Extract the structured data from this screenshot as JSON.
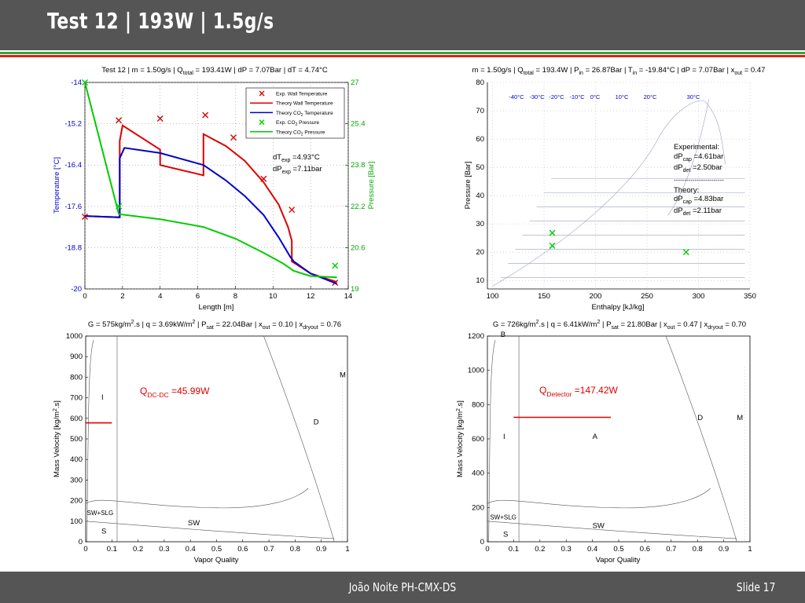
{
  "slide": {
    "title": "Test 12 |  193W | 1.5g/s",
    "footer": "João Noite PH-CMX-DS",
    "slide_number": "Slide 17",
    "colors": {
      "header": "#555555",
      "accent_green": "#35a435",
      "accent_red": "#d92020"
    }
  },
  "chart_data": [
    {
      "id": "temperature_pressure_profile",
      "type": "line",
      "title": "Test 12 | m = 1.50g/s | Qtotal = 193.41W | dP = 7.07Bar | dT = 4.74°C",
      "xlabel": "Length [m]",
      "ylabel": "Temperature [°C]",
      "ylabel_right": "Pressure [Bar]",
      "xlim": [
        0,
        14
      ],
      "ylim": [
        -20,
        -14
      ],
      "ylim_right": [
        19,
        27
      ],
      "x_ticks": [
        "0",
        "2",
        "4",
        "6",
        "8",
        "10",
        "12",
        "14"
      ],
      "y_ticks": [
        "-14",
        "-15.2",
        "-16.4",
        "-17.6",
        "-18.8",
        "-20"
      ],
      "y_ticks_right": [
        "27",
        "25.4",
        "23.8",
        "22.2",
        "20.6",
        "19"
      ],
      "annotation_lines": [
        "dTexp =4.93°C",
        "dPexp =7.11bar"
      ],
      "legend_position": "top-right",
      "legend": [
        {
          "label": "Exp. Wall Temperature",
          "color": "#dd0000",
          "marker": "x"
        },
        {
          "label": "Theory  Wall Temperature",
          "color": "#dd0000",
          "marker": "line"
        },
        {
          "label": "Theory  CO2 Temperature",
          "color": "#0000cc",
          "marker": "line"
        },
        {
          "label": "Exp. CO2 Pressure",
          "color": "#00cc00",
          "marker": "x"
        },
        {
          "label": "Theory  CO2 Pressure",
          "color": "#00cc00",
          "marker": "line"
        }
      ],
      "series": [
        {
          "name": "Exp. Wall Temperature",
          "kind": "scatter",
          "axis": "left",
          "color": "#dd0000",
          "x": [
            0,
            1.8,
            4.0,
            6.4,
            7.9,
            9.5,
            11.0,
            13.3
          ],
          "y": [
            -17.9,
            -15.1,
            -15.05,
            -14.95,
            -15.6,
            -16.8,
            -17.7,
            -19.82
          ]
        },
        {
          "name": "Theory  Wall Temperature",
          "kind": "line",
          "axis": "left",
          "color": "#dd0000",
          "x": [
            0,
            1.85,
            1.85,
            2.0,
            4.0,
            4.0,
            6.3,
            6.3,
            7.5,
            8.5,
            9.5,
            10.3,
            10.8,
            11.0,
            11.0,
            12.0,
            13.4
          ],
          "y": [
            -17.88,
            -17.92,
            -15.7,
            -15.25,
            -15.95,
            -16.4,
            -16.7,
            -15.5,
            -15.85,
            -16.28,
            -16.9,
            -17.55,
            -18.2,
            -18.6,
            -19.2,
            -19.55,
            -19.8
          ]
        },
        {
          "name": "Theory  CO2 Temperature",
          "kind": "line",
          "axis": "left",
          "color": "#0000cc",
          "x": [
            0,
            1.85,
            1.85,
            2.1,
            4.0,
            6.3,
            7.5,
            8.5,
            9.5,
            10.3,
            10.9,
            11.1,
            12.0,
            13.4
          ],
          "y": [
            -17.88,
            -17.92,
            -16.2,
            -15.9,
            -16.05,
            -16.4,
            -16.85,
            -17.3,
            -17.85,
            -18.5,
            -19.05,
            -19.2,
            -19.55,
            -19.85
          ]
        },
        {
          "name": "Exp. CO2 Pressure",
          "kind": "scatter",
          "axis": "right",
          "color": "#00cc00",
          "x": [
            0,
            1.8,
            13.3
          ],
          "y": [
            27.0,
            22.2,
            19.9
          ]
        },
        {
          "name": "Theory  CO2 Pressure",
          "kind": "line",
          "axis": "right",
          "color": "#00cc00",
          "x": [
            0,
            1.8,
            4.0,
            6.3,
            8.0,
            9.5,
            10.5,
            11.1,
            12.0,
            13.4
          ],
          "y": [
            27.0,
            21.9,
            21.7,
            21.4,
            20.95,
            20.4,
            20.0,
            19.7,
            19.5,
            19.45
          ]
        }
      ]
    },
    {
      "id": "ph_diagram",
      "type": "scatter",
      "title": "m = 1.50g/s | Qtotal = 193.4W | Pin = 26.87Bar | Tin = -19.84°C | dP = 7.07Bar | xout = 0.47",
      "xlabel": "Enthalpy [kJ/kg]",
      "ylabel": "Pressure [Bar]",
      "xlim": [
        95,
        350
      ],
      "ylim": [
        7,
        80
      ],
      "x_ticks": [
        "100",
        "150",
        "200",
        "250",
        "300",
        "350"
      ],
      "y_ticks": [
        "80",
        "70",
        "60",
        "50",
        "40",
        "30",
        "20",
        "10"
      ],
      "isotherm_labels": [
        "-40°C",
        "-30°C",
        "-20°C",
        "-10°C",
        "0°C",
        "10°C",
        "20°C",
        "30°C"
      ],
      "annotation_lines": [
        "Experimental:",
        "dPcap =4.61bar",
        "dPdet =2.50bar",
        "------------------------",
        "Theory:",
        "dPcap =4.83bar",
        "dPdet =2.11bar"
      ],
      "series": [
        {
          "kind": "scatter",
          "color": "#00cc00",
          "x": [
            158,
            158,
            288
          ],
          "y": [
            26.8,
            22.3,
            20.0
          ]
        }
      ]
    },
    {
      "id": "flow_pattern_map_capillary",
      "type": "line",
      "title": "G = 575kg/m2.s | q = 3.69kW/m2 | Psat = 22.04Bar | xout = 0.10 | xdryout = 0.76",
      "xlabel": "Vapor Quality",
      "ylabel": "Mass Velocity [kg/m2.s]",
      "xlim": [
        0,
        1
      ],
      "ylim": [
        0,
        1000
      ],
      "x_ticks": [
        "0",
        "0.1",
        "0.2",
        "0.3",
        "0.4",
        "0.5",
        "0.6",
        "0.7",
        "0.8",
        "0.9",
        "1"
      ],
      "y_ticks": [
        "1000",
        "900",
        "800",
        "700",
        "600",
        "500",
        "400",
        "300",
        "200",
        "100",
        "0"
      ],
      "heat_label": "QDC-DC =45.99W",
      "region_labels": [
        "I",
        "D",
        "M",
        "SW+SLG",
        "SW",
        "S"
      ],
      "series": [
        {
          "kind": "line",
          "color": "#dd0000",
          "x": [
            0,
            0.1
          ],
          "y": [
            578,
            578
          ]
        }
      ]
    },
    {
      "id": "flow_pattern_map_detector",
      "type": "line",
      "title": "G = 726kg/m2.s | q = 6.41kW/m2 | Psat = 21.80Bar | xout = 0.47 | xdryout = 0.70",
      "xlabel": "Vapor Quality",
      "ylabel": "Mass Velocity [kg/m2.s]",
      "xlim": [
        0,
        1
      ],
      "ylim": [
        0,
        1200
      ],
      "x_ticks": [
        "0",
        "0.1",
        "0.2",
        "0.3",
        "0.4",
        "0.5",
        "0.6",
        "0.7",
        "0.8",
        "0.9",
        "1"
      ],
      "y_ticks": [
        "1200",
        "1000",
        "800",
        "600",
        "400",
        "200",
        "0"
      ],
      "heat_label": "QDetector =147.42W",
      "region_labels": [
        "B",
        "I",
        "A",
        "D",
        "M",
        "SW+SLG",
        "SW",
        "S"
      ],
      "series": [
        {
          "kind": "line",
          "color": "#dd0000",
          "x": [
            0.1,
            0.47
          ],
          "y": [
            726,
            726
          ]
        }
      ]
    }
  ]
}
